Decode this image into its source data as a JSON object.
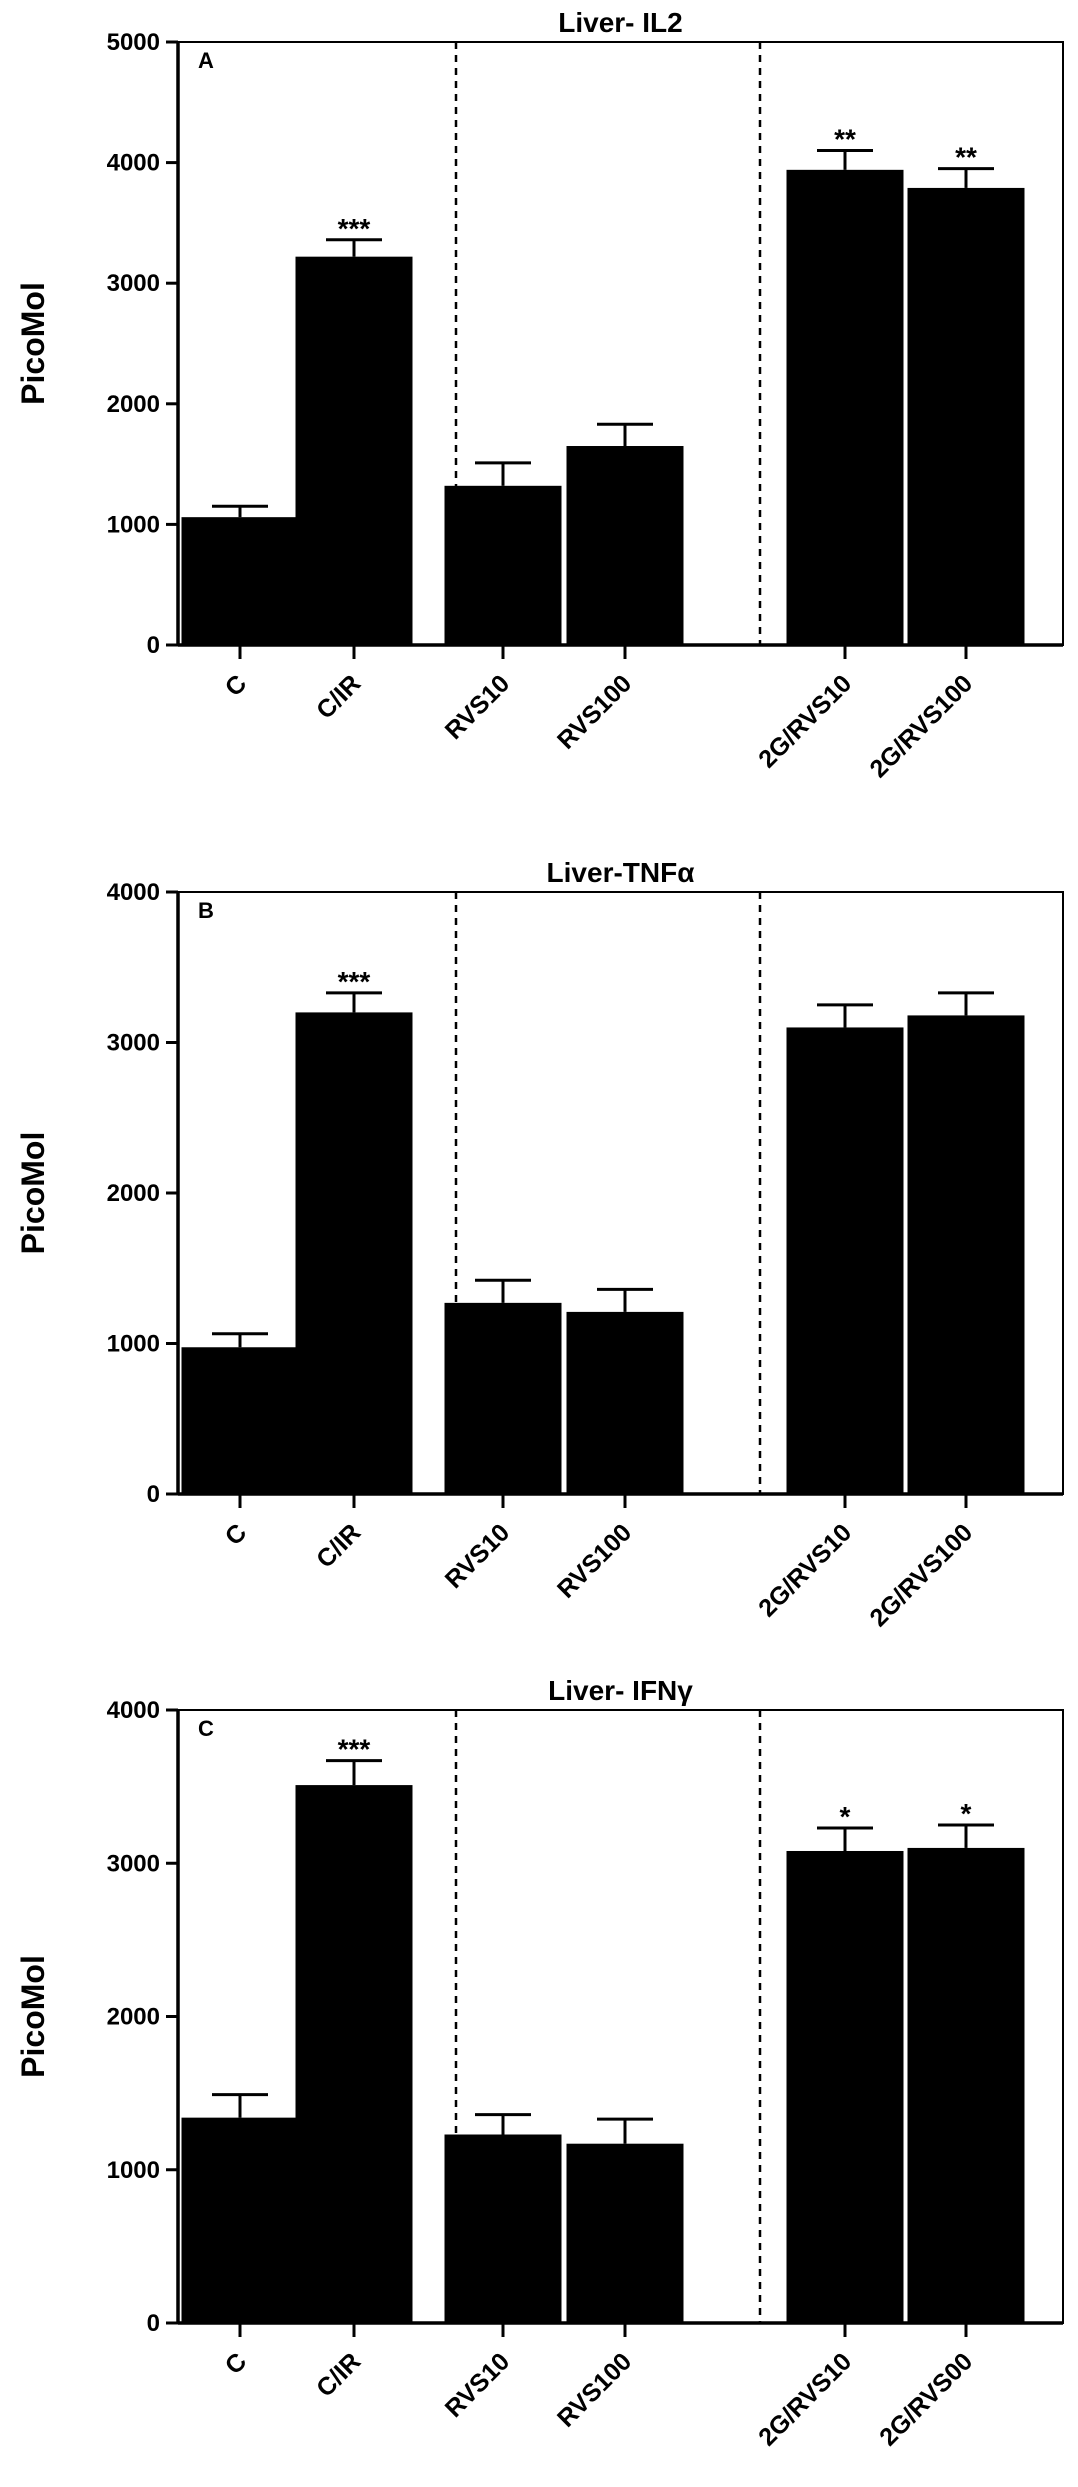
{
  "chart_data": [
    {
      "type": "bar",
      "title": "Liver- IL2",
      "panel_label": "A",
      "ylabel": "PicoMol",
      "xlabel": "",
      "ylim": [
        0,
        5000
      ],
      "yticks": [
        0,
        1000,
        2000,
        3000,
        4000,
        5000
      ],
      "categories": [
        "C",
        "C/IR",
        "RVS10",
        "RVS100",
        "2G/RVS10",
        "2G/RVS100"
      ],
      "values": [
        1060,
        3220,
        1320,
        1650,
        3940,
        3790
      ],
      "errors": [
        90,
        140,
        190,
        180,
        160,
        160
      ],
      "significance": [
        "",
        "***",
        "",
        "",
        "**",
        "**"
      ],
      "bar_color": "#000000",
      "group_dividers_after": [
        1,
        3
      ]
    },
    {
      "type": "bar",
      "title": "Liver-TNFα",
      "panel_label": "B",
      "ylabel": "PicoMol",
      "xlabel": "",
      "ylim": [
        0,
        4000
      ],
      "yticks": [
        0,
        1000,
        2000,
        3000,
        4000
      ],
      "categories": [
        "C",
        "C/IR",
        "RVS10",
        "RVS100",
        "2G/RVS10",
        "2G/RVS100"
      ],
      "values": [
        975,
        3200,
        1270,
        1210,
        3100,
        3180
      ],
      "errors": [
        90,
        130,
        150,
        150,
        150,
        150
      ],
      "significance": [
        "",
        "***",
        "",
        "",
        "",
        ""
      ],
      "bar_color": "#000000",
      "group_dividers_after": [
        1,
        3
      ]
    },
    {
      "type": "bar",
      "title": "Liver- IFNγ",
      "panel_label": "C",
      "ylabel": "PicoMol",
      "xlabel": "",
      "ylim": [
        0,
        4000
      ],
      "yticks": [
        0,
        1000,
        2000,
        3000,
        4000
      ],
      "categories": [
        "C",
        "C/IR",
        "RVS10",
        "RVS100",
        "2G/RVS10",
        "2G/RVS00"
      ],
      "values": [
        1340,
        3510,
        1230,
        1170,
        3080,
        3100
      ],
      "errors": [
        150,
        160,
        130,
        160,
        150,
        150
      ],
      "significance": [
        "",
        "***",
        "",
        "",
        "*",
        "*"
      ],
      "bar_color": "#000000",
      "group_dividers_after": [
        1,
        3
      ]
    }
  ]
}
